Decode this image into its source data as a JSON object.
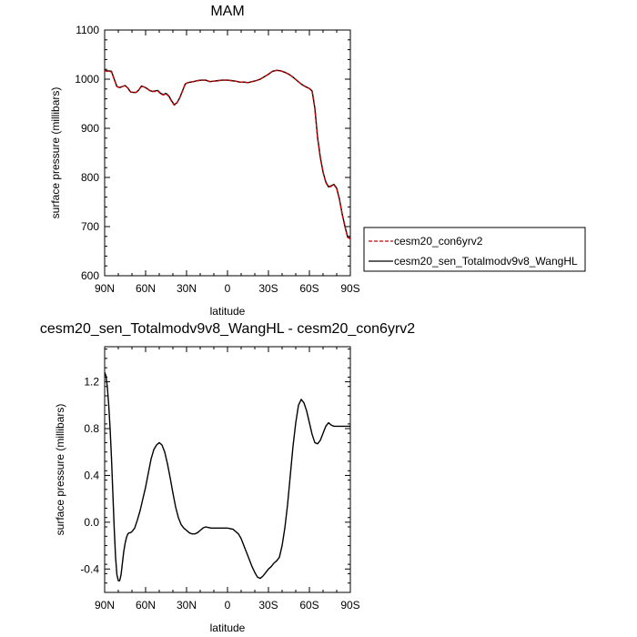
{
  "chart_data": [
    {
      "type": "line",
      "title": "MAM",
      "xlabel": "latitude",
      "ylabel": "surface pressure (millibars)",
      "xlim": [
        90,
        -90
      ],
      "ylim": [
        600,
        1100
      ],
      "x_ticks": [
        {
          "value": 90,
          "label": "90N"
        },
        {
          "value": 60,
          "label": "60N"
        },
        {
          "value": 30,
          "label": "30N"
        },
        {
          "value": 0,
          "label": "0"
        },
        {
          "value": -30,
          "label": "30S"
        },
        {
          "value": -60,
          "label": "60S"
        },
        {
          "value": -90,
          "label": "90S"
        }
      ],
      "y_ticks": [
        600,
        700,
        800,
        900,
        1000,
        1100
      ],
      "legend_placement": "right",
      "series": [
        {
          "name": "cesm20_con6yrv2",
          "color": "#cc0000",
          "dash": "dashed",
          "x": [
            90,
            88,
            85,
            83,
            81,
            79,
            77,
            75,
            73,
            71,
            69,
            67,
            65,
            63,
            61,
            59,
            57,
            55,
            53,
            51,
            49,
            47,
            45,
            43,
            41,
            39,
            37,
            35,
            33,
            31,
            29,
            27,
            25,
            22,
            19,
            16,
            13,
            10,
            7,
            4,
            0,
            -3,
            -6,
            -9,
            -12,
            -15,
            -18,
            -21,
            -24,
            -27,
            -30,
            -33,
            -36,
            -39,
            -42,
            -45,
            -48,
            -51,
            -54,
            -57,
            -60,
            -62,
            -64,
            -66,
            -68,
            -70,
            -72,
            -74,
            -76,
            -78,
            -80,
            -82,
            -84,
            -86,
            -88,
            -90
          ],
          "values": [
            1017,
            1016,
            1015,
            1000,
            985,
            983,
            985,
            987,
            982,
            974,
            973,
            973,
            978,
            986,
            984,
            981,
            977,
            975,
            975,
            976,
            970,
            968,
            970,
            965,
            955,
            947,
            952,
            962,
            976,
            990,
            993,
            994,
            995,
            997,
            998,
            998,
            995,
            996,
            997,
            998,
            998,
            997,
            996,
            994,
            994,
            993,
            995,
            997,
            1000,
            1005,
            1010,
            1016,
            1018,
            1017,
            1014,
            1010,
            1004,
            997,
            990,
            985,
            981,
            975,
            940,
            880,
            840,
            810,
            790,
            780,
            782,
            785,
            777,
            755,
            725,
            700,
            678,
            675
          ]
        },
        {
          "name": "cesm20_sen_Totalmodv9v8_WangHL",
          "color": "#000000",
          "dash": "solid",
          "x": [
            90,
            88,
            85,
            83,
            81,
            79,
            77,
            75,
            73,
            71,
            69,
            67,
            65,
            63,
            61,
            59,
            57,
            55,
            53,
            51,
            49,
            47,
            45,
            43,
            41,
            39,
            37,
            35,
            33,
            31,
            29,
            27,
            25,
            22,
            19,
            16,
            13,
            10,
            7,
            4,
            0,
            -3,
            -6,
            -9,
            -12,
            -15,
            -18,
            -21,
            -24,
            -27,
            -30,
            -33,
            -36,
            -39,
            -42,
            -45,
            -48,
            -51,
            -54,
            -57,
            -60,
            -62,
            -64,
            -66,
            -68,
            -70,
            -72,
            -74,
            -76,
            -78,
            -80,
            -82,
            -84,
            -86,
            -88,
            -90
          ],
          "values": [
            1018,
            1017,
            1016,
            1000,
            985,
            983,
            985,
            987,
            982,
            974,
            973,
            973,
            978,
            986,
            984,
            981,
            977,
            975,
            976,
            977,
            971,
            969,
            971,
            966,
            956,
            948,
            952,
            962,
            976,
            990,
            993,
            994,
            995,
            997,
            998,
            998,
            995,
            996,
            997,
            998,
            998,
            997,
            996,
            994,
            994,
            993,
            995,
            997,
            1000,
            1005,
            1010,
            1016,
            1018,
            1017,
            1014,
            1010,
            1004,
            997,
            990,
            985,
            981,
            976,
            941,
            881,
            841,
            811,
            791,
            781,
            783,
            786,
            778,
            756,
            726,
            701,
            679,
            676
          ]
        }
      ]
    },
    {
      "type": "line",
      "title": "cesm20_sen_Totalmodv9v8_WangHL - cesm20_con6yrv2",
      "xlabel": "latitude",
      "ylabel": "surface pressure (millibars)",
      "xlim": [
        90,
        -90
      ],
      "ylim": [
        -0.6,
        1.5
      ],
      "x_ticks": [
        {
          "value": 90,
          "label": "90N"
        },
        {
          "value": 60,
          "label": "60N"
        },
        {
          "value": 30,
          "label": "30N"
        },
        {
          "value": 0,
          "label": "0"
        },
        {
          "value": -30,
          "label": "30S"
        },
        {
          "value": -60,
          "label": "60S"
        },
        {
          "value": -90,
          "label": "90S"
        }
      ],
      "y_ticks": [
        {
          "value": -0.4,
          "label": "-0.4"
        },
        {
          "value": 0.0,
          "label": "0.0"
        },
        {
          "value": 0.4,
          "label": "0.4"
        },
        {
          "value": 0.8,
          "label": "0.8"
        },
        {
          "value": 1.2,
          "label": "1.2"
        }
      ],
      "series": [
        {
          "color": "#000000",
          "dash": "solid",
          "x": [
            90,
            89,
            88,
            87,
            86,
            85,
            84,
            83,
            82,
            81,
            80,
            79,
            78,
            77,
            76,
            75,
            74,
            73,
            72,
            71,
            70,
            68,
            66,
            64,
            62,
            60,
            58,
            56,
            54,
            52,
            50,
            48,
            46,
            44,
            42,
            40,
            38,
            36,
            34,
            32,
            30,
            28,
            26,
            24,
            22,
            20,
            18,
            16,
            14,
            12,
            10,
            8,
            6,
            4,
            2,
            0,
            -2,
            -4,
            -6,
            -8,
            -10,
            -12,
            -14,
            -16,
            -18,
            -20,
            -22,
            -24,
            -26,
            -28,
            -30,
            -32,
            -34,
            -36,
            -38,
            -40,
            -42,
            -44,
            -46,
            -48,
            -50,
            -52,
            -54,
            -56,
            -58,
            -60,
            -62,
            -64,
            -66,
            -68,
            -70,
            -72,
            -74,
            -76,
            -78,
            -80,
            -82,
            -84,
            -86,
            -88,
            -90
          ],
          "values": [
            1.28,
            1.25,
            1.15,
            1.0,
            0.8,
            0.55,
            0.25,
            -0.05,
            -0.3,
            -0.45,
            -0.5,
            -0.5,
            -0.45,
            -0.35,
            -0.25,
            -0.18,
            -0.13,
            -0.1,
            -0.09,
            -0.09,
            -0.08,
            -0.05,
            0.02,
            0.1,
            0.2,
            0.3,
            0.42,
            0.54,
            0.62,
            0.66,
            0.68,
            0.66,
            0.6,
            0.5,
            0.38,
            0.25,
            0.13,
            0.04,
            -0.02,
            -0.05,
            -0.07,
            -0.09,
            -0.1,
            -0.1,
            -0.09,
            -0.07,
            -0.05,
            -0.04,
            -0.045,
            -0.05,
            -0.05,
            -0.05,
            -0.05,
            -0.05,
            -0.05,
            -0.05,
            -0.055,
            -0.06,
            -0.08,
            -0.1,
            -0.14,
            -0.2,
            -0.26,
            -0.32,
            -0.38,
            -0.43,
            -0.47,
            -0.48,
            -0.46,
            -0.43,
            -0.4,
            -0.38,
            -0.35,
            -0.33,
            -0.3,
            -0.2,
            -0.05,
            0.15,
            0.4,
            0.65,
            0.85,
            1.0,
            1.05,
            1.02,
            0.95,
            0.85,
            0.75,
            0.68,
            0.67,
            0.7,
            0.76,
            0.82,
            0.85,
            0.83,
            0.82,
            0.82,
            0.82,
            0.82,
            0.82,
            0.82,
            0.82
          ]
        }
      ]
    }
  ]
}
